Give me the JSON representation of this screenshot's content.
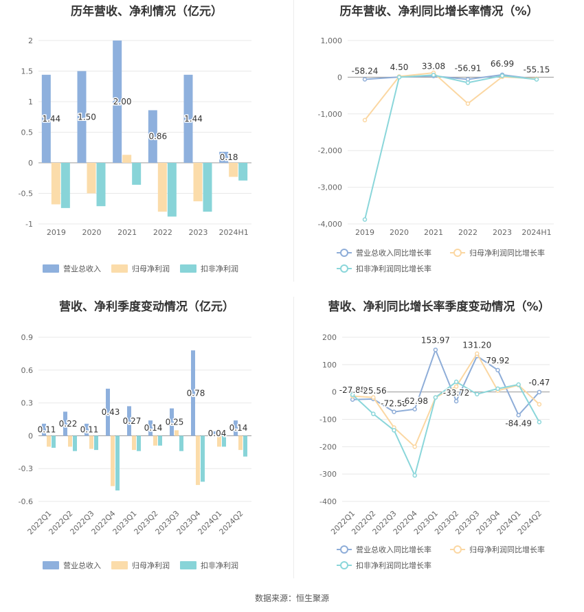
{
  "source": "数据来源：恒生聚源",
  "colors": {
    "revenue": "#8eb0dd",
    "net_profit": "#fbdcaa",
    "deducted_profit": "#88d4d8",
    "revenue_line": "#8eadd8",
    "net_profit_line": "#fbd7a2",
    "deducted_line": "#8ad6da"
  },
  "chart_data": [
    {
      "type": "bar",
      "title": "历年营收、净利情况（亿元）",
      "categories": [
        "2019",
        "2020",
        "2021",
        "2022",
        "2023",
        "2024H1"
      ],
      "series": [
        {
          "name": "营业总收入",
          "values": [
            1.44,
            1.5,
            2.0,
            0.86,
            1.44,
            0.18
          ]
        },
        {
          "name": "归母净利润",
          "values": [
            -0.68,
            -0.5,
            0.13,
            -0.8,
            -0.63,
            -0.23
          ]
        },
        {
          "name": "扣非净利润",
          "values": [
            -0.74,
            -0.71,
            -0.36,
            -0.88,
            -0.8,
            -0.29
          ]
        }
      ],
      "data_labels": [
        "1.44",
        "1.50",
        "2.00",
        "0.86",
        "1.44",
        "0.18"
      ],
      "yticks": [
        "2",
        "1.5",
        "1",
        "0.5",
        "0",
        "-0.5",
        "-1"
      ],
      "ylim": [
        -1,
        2
      ],
      "grid": true,
      "legend": "bottom"
    },
    {
      "type": "line",
      "title": "历年营收、净利同比增长率情况（%）",
      "categories": [
        "2019",
        "2020",
        "2021",
        "2022",
        "2023",
        "2024H1"
      ],
      "series": [
        {
          "name": "营业总收入同比增长率",
          "values": [
            -58.24,
            4.5,
            33.08,
            -56.91,
            66.99,
            -55.15
          ]
        },
        {
          "name": "归母净利润同比增长率",
          "values": [
            -1170,
            20,
            120,
            -720,
            10,
            -40
          ]
        },
        {
          "name": "扣非净利润同比增长率",
          "values": [
            -3880,
            0,
            60,
            -150,
            40,
            -60
          ]
        }
      ],
      "data_labels": [
        "-58.24",
        "4.50",
        "33.08",
        "-56.91",
        "66.99",
        "-55.15"
      ],
      "yticks": [
        "1,000",
        "0",
        "-1,000",
        "-2,000",
        "-3,000",
        "-4,000"
      ],
      "ylim": [
        -4000,
        1000
      ],
      "grid": true,
      "legend": "bottom"
    },
    {
      "type": "bar",
      "title": "营收、净利季度变动情况（亿元）",
      "categories": [
        "2022Q1",
        "2022Q2",
        "2022Q3",
        "2022Q4",
        "2023Q1",
        "2023Q2",
        "2023Q3",
        "2023Q4",
        "2024Q1",
        "2024Q2"
      ],
      "series": [
        {
          "name": "营业总收入",
          "values": [
            0.11,
            0.22,
            0.11,
            0.43,
            0.27,
            0.14,
            0.25,
            0.78,
            0.04,
            0.14
          ]
        },
        {
          "name": "归母净利润",
          "values": [
            -0.1,
            -0.1,
            -0.12,
            -0.46,
            -0.13,
            -0.09,
            0.05,
            -0.45,
            -0.1,
            -0.13
          ]
        },
        {
          "name": "扣非净利润",
          "values": [
            -0.11,
            -0.14,
            -0.13,
            -0.5,
            -0.14,
            -0.09,
            -0.14,
            -0.42,
            -0.1,
            -0.19
          ]
        }
      ],
      "data_labels": [
        "0.11",
        "0.22",
        "0.11",
        "0.43",
        "0.27",
        "0.14",
        "0.25",
        "0.78",
        "0.04",
        "0.14"
      ],
      "yticks": [
        "0.9",
        "0.6",
        "0.3",
        "0",
        "-0.3",
        "-0.6"
      ],
      "ylim": [
        -0.6,
        0.9
      ],
      "grid": true,
      "legend": "bottom"
    },
    {
      "type": "line",
      "title": "营收、净利同比增长率季度变动情况（%）",
      "categories": [
        "2022Q1",
        "2022Q2",
        "2022Q3",
        "2022Q4",
        "2023Q1",
        "2023Q2",
        "2023Q3",
        "2023Q4",
        "2024Q1",
        "2024Q2"
      ],
      "series": [
        {
          "name": "营业总收入同比增长率",
          "values": [
            -27.85,
            -25.56,
            -72.58,
            -62.98,
            153.97,
            -33.72,
            131.2,
            79.92,
            -84.49,
            -0.47
          ]
        },
        {
          "name": "归母净利润同比增长率",
          "values": [
            -15,
            -20,
            -130,
            -200,
            -20,
            20,
            140,
            5,
            25,
            -45
          ]
        },
        {
          "name": "扣非净利润同比增长率",
          "values": [
            -10,
            -80,
            -140,
            -305,
            -20,
            37,
            -8,
            12,
            27,
            -110
          ]
        }
      ],
      "data_labels": [
        "-27.85",
        "-25.56",
        "-72.58",
        "-62.98",
        "153.97",
        "-33.72",
        "131.20",
        "79.92",
        "-84.49",
        "-0.47"
      ],
      "yticks": [
        "200",
        "100",
        "0",
        "-100",
        "-200",
        "-300",
        "-400"
      ],
      "ylim": [
        -400,
        200
      ],
      "grid": true,
      "legend": "bottom"
    }
  ]
}
